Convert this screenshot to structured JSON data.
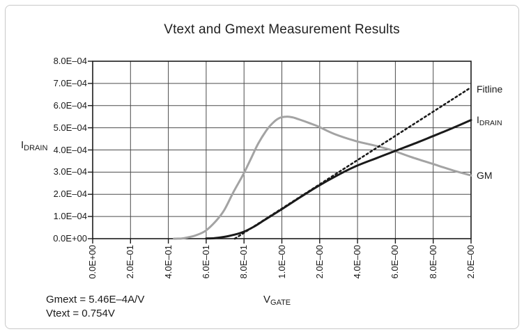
{
  "title": "Vtext and Gmext Measurement Results",
  "axes": {
    "y_title_main": "I",
    "y_title_sub": "DRAIN",
    "x_title_main": "V",
    "x_title_sub": "GATE",
    "y_ticks": [
      "8.0E–04",
      "7.0E–04",
      "6.0E–04",
      "5.0E–04",
      "4.0E–04",
      "3.0E–04",
      "2.0E–04",
      "1.0E–04",
      "0.0E+00"
    ],
    "x_ticks": [
      "0.0E+00",
      "2.0E–01",
      "4.0E–01",
      "6.0E–01",
      "8.0E–01",
      "1.0E–00",
      "2.0E–00",
      "4.0E–00",
      "6.0E–00",
      "8.0E–00",
      "2.0E–00"
    ]
  },
  "legend": {
    "fitline": "Fitline",
    "idrain_main": "I",
    "idrain_sub": "DRAIN",
    "gm": "GM"
  },
  "annotations": {
    "line1": "Gmext = 5.46E–4A/V",
    "line2": "Vtext = 0.754V"
  },
  "colors": {
    "line_black": "#1a1a1a",
    "line_gray": "#a3a3a3",
    "grid": "#4b4b4b",
    "frame": "#1a1a1a"
  },
  "chart_data": {
    "type": "line",
    "title": "Vtext and Gmext Measurement Results",
    "xlabel": "V_GATE",
    "ylabel": "I_DRAIN",
    "ylim": [
      0,
      0.0008
    ],
    "y_ticklabels": [
      "8.0E–04",
      "7.0E–04",
      "6.0E–04",
      "5.0E–04",
      "4.0E–04",
      "3.0E–04",
      "2.0E–04",
      "1.0E–04",
      "0.0E+00"
    ],
    "x_ticklabels": [
      "0.0E+00",
      "2.0E–01",
      "4.0E–01",
      "6.0E–01",
      "8.0E–01",
      "1.0E–00",
      "2.0E–00",
      "4.0E–00",
      "6.0E–00",
      "8.0E–00",
      "2.0E–00"
    ],
    "grid": true,
    "legend_position": "right-outside",
    "note": "x values are fractions of the x-axis span (11 evenly spaced ticks); y values in amps",
    "series": [
      {
        "name": "GM",
        "color": "#a3a3a3",
        "style": "solid",
        "width": 3,
        "points": [
          [
            0.215,
            0.0
          ],
          [
            0.235,
            1e-06
          ],
          [
            0.252,
            6e-06
          ],
          [
            0.271,
            1.4e-05
          ],
          [
            0.298,
            3.5e-05
          ],
          [
            0.326,
            8e-05
          ],
          [
            0.348,
            0.00013
          ],
          [
            0.372,
            0.00021
          ],
          [
            0.398,
            0.00029
          ],
          [
            0.418,
            0.00036
          ],
          [
            0.438,
            0.00043
          ],
          [
            0.46,
            0.00049
          ],
          [
            0.478,
            0.000525
          ],
          [
            0.495,
            0.000545
          ],
          [
            0.512,
            0.00055
          ],
          [
            0.528,
            0.000547
          ],
          [
            0.545,
            0.000538
          ],
          [
            0.575,
            0.00052
          ],
          [
            0.597,
            0.000505
          ],
          [
            0.639,
            0.000472
          ],
          [
            0.696,
            0.00044
          ],
          [
            0.75,
            0.000418
          ],
          [
            0.794,
            0.000397
          ],
          [
            0.842,
            0.000368
          ],
          [
            0.899,
            0.000337
          ],
          [
            0.952,
            0.000308
          ],
          [
            1.0,
            0.000285
          ]
        ]
      },
      {
        "name": "IDRAIN",
        "color": "#1a1a1a",
        "style": "solid",
        "width": 3,
        "points": [
          [
            0.3,
            1e-06
          ],
          [
            0.32,
            2e-06
          ],
          [
            0.348,
            8e-06
          ],
          [
            0.372,
            1.7e-05
          ],
          [
            0.398,
            3e-05
          ],
          [
            0.427,
            5.5e-05
          ],
          [
            0.455,
            8.5e-05
          ],
          [
            0.497,
            0.00013
          ],
          [
            0.547,
            0.000185
          ],
          [
            0.597,
            0.000238
          ],
          [
            0.646,
            0.000285
          ],
          [
            0.696,
            0.000327
          ],
          [
            0.75,
            0.000363
          ],
          [
            0.794,
            0.000392
          ],
          [
            0.86,
            0.000435
          ],
          [
            0.899,
            0.000462
          ],
          [
            0.952,
            0.000499
          ],
          [
            1.0,
            0.000535
          ]
        ]
      },
      {
        "name": "Fitline",
        "color": "#1a1a1a",
        "style": "dotted",
        "width": 2.6,
        "points": [
          [
            0.3757,
            0.0
          ],
          [
            0.998,
            0.00068
          ]
        ]
      }
    ]
  }
}
